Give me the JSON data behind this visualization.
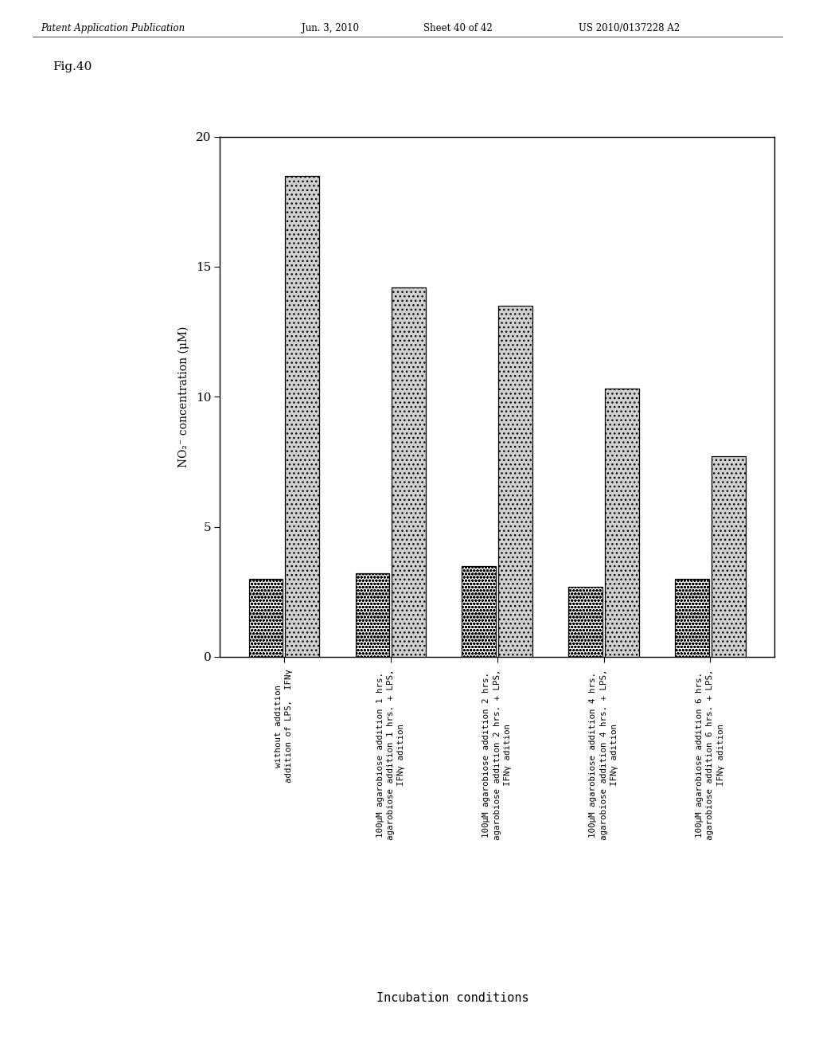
{
  "ylabel": "NO₂⁻ concentration (μM)",
  "xlabel": "Incubation conditions",
  "ylim": [
    0,
    20
  ],
  "yticks": [
    0,
    5,
    10,
    15,
    20
  ],
  "values_dotted": [
    3.0,
    3.2,
    3.5,
    2.7,
    3.0
  ],
  "values_gray": [
    18.5,
    14.2,
    13.5,
    10.3,
    7.7
  ],
  "tick_label_group1": [
    "without addition",
    "addition of LPS,  IFNγ"
  ],
  "tick_label_group2": [
    "100μM agarobiose addition 1 hrs.",
    "agarobiose addition 1 hrs. + LPS,",
    "IFNγ adition"
  ],
  "tick_label_group3": [
    "100μM agarobiose addition 2 hrs.",
    "agarobiose addition 2 hrs. + LPS,",
    "IFNγ adition"
  ],
  "tick_label_group4": [
    "100μM agarobiose addition 4 hrs.",
    "agarobiose addition 4 hrs. + LPS,",
    "IFNγ adition"
  ],
  "tick_label_group5": [
    "100μM agarobiose addition 6 hrs.",
    "agarobiose addition 6 hrs. + LPS,",
    "IFNγ adition"
  ],
  "background_color": "#ffffff",
  "bar_width": 0.32,
  "fig_label": "Fig.40",
  "header_left": "Patent Application Publication",
  "header_mid1": "Jun. 3, 2010",
  "header_mid2": "Sheet 40 of 42",
  "header_right": "US 2010/0137228 A2",
  "xlabel_label": "Incubation conditions"
}
